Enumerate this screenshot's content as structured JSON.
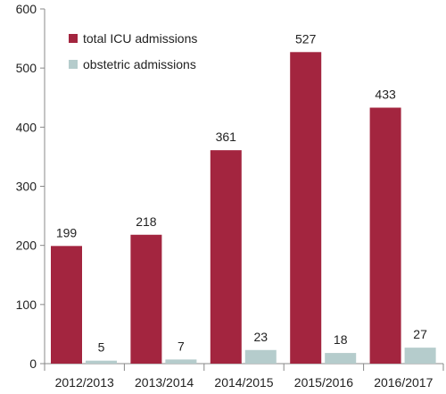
{
  "chart_data": {
    "type": "bar",
    "categories": [
      "2012/2013",
      "2013/2014",
      "2014/2015",
      "2015/2016",
      "2016/2017"
    ],
    "series": [
      {
        "name": "total ICU admissions",
        "values": [
          199,
          218,
          361,
          527,
          433
        ],
        "color": "#A3253F"
      },
      {
        "name": "obstetric admissions",
        "values": [
          5,
          7,
          23,
          18,
          27
        ],
        "color": "#B5CCCC"
      }
    ],
    "ylim": [
      0,
      600
    ],
    "yticks": [
      0,
      100,
      200,
      300,
      400,
      500,
      600
    ],
    "grid": false,
    "legend": "top-left",
    "title": "",
    "xlabel": "",
    "ylabel": ""
  }
}
